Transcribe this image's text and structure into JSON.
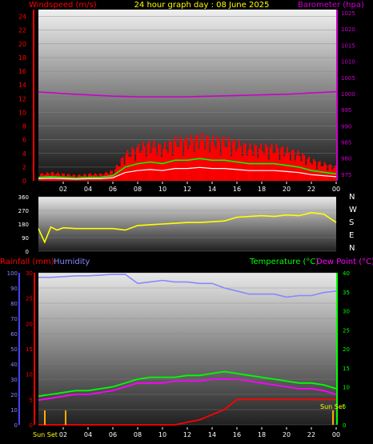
{
  "header": {
    "wind_label": "Windspeed (m/s)",
    "title": "24 hour graph day : 08 June 2025",
    "baro_label": "Barometer (hpa)"
  },
  "labels": {
    "rainfall": "Rainfall (mm)",
    "humidity": "Humidity",
    "temperature": "Temperature (°C)",
    "dewpoint": "Dew Point (°C)",
    "sun_set_left": "Sun Set",
    "sun_set_right": "Sun Set"
  },
  "colors": {
    "wind": "#ff0000",
    "barometer": "#cc00cc",
    "direction": "#ffff00",
    "rain": "#ff0000",
    "humidity": "#8888ff",
    "temperature": "#00ff00",
    "dewpoint": "#ff00ff",
    "gust": "#ffffff",
    "sunset_marker": "#ffaa00"
  },
  "chart_data": [
    {
      "type": "line",
      "panel": "wind_barometer",
      "x_ticks": [
        "02",
        "04",
        "06",
        "08",
        "10",
        "12",
        "14",
        "16",
        "18",
        "20",
        "22",
        "00"
      ],
      "y_left_ticks": [
        0,
        2,
        4,
        6,
        8,
        10,
        12,
        14,
        16,
        18,
        20,
        22,
        24
      ],
      "y_left_range": [
        0,
        25
      ],
      "y_right_ticks": [
        975,
        980,
        985,
        990,
        995,
        1000,
        1005,
        1010,
        1015,
        1020,
        1025
      ],
      "y_right_range": [
        973,
        1026
      ],
      "x_hours": [
        0,
        1,
        2,
        3,
        4,
        5,
        6,
        7,
        8,
        9,
        10,
        11,
        12,
        13,
        14,
        15,
        16,
        17,
        18,
        19,
        20,
        21,
        22,
        23,
        24
      ],
      "series": [
        {
          "name": "Windspeed (m/s)",
          "axis": "left",
          "values": [
            1,
            1.2,
            1,
            0.8,
            1,
            1,
            1.5,
            4,
            5,
            5.5,
            5,
            6,
            6,
            6.5,
            6,
            6,
            5.5,
            5,
            5,
            5,
            4.5,
            4,
            3,
            2.5,
            2
          ]
        },
        {
          "name": "Barometer (hpa)",
          "axis": "right",
          "values": [
            1000.5,
            1000.3,
            1000,
            999.8,
            999.6,
            999.4,
            999.2,
            999.1,
            999,
            999,
            999,
            999,
            999,
            999.1,
            999.2,
            999.3,
            999.4,
            999.5,
            999.6,
            999.7,
            999.8,
            1000,
            1000.2,
            1000.4,
            1000.6
          ]
        }
      ]
    },
    {
      "type": "line",
      "panel": "wind_direction",
      "y_ticks": [
        0,
        90,
        180,
        270,
        360
      ],
      "y_range": [
        0,
        360
      ],
      "compass": [
        "N",
        "W",
        "S",
        "E",
        "N"
      ],
      "x_hours": [
        0,
        0.5,
        1,
        1.5,
        2,
        3,
        4,
        5,
        6,
        7,
        8,
        9,
        10,
        11,
        12,
        13,
        14,
        15,
        16,
        17,
        18,
        19,
        20,
        21,
        22,
        23,
        24
      ],
      "series": [
        {
          "name": "Wind direction",
          "values": [
            150,
            60,
            160,
            140,
            155,
            150,
            150,
            150,
            150,
            140,
            170,
            175,
            180,
            185,
            190,
            190,
            195,
            200,
            225,
            230,
            235,
            230,
            240,
            235,
            255,
            245,
            190
          ]
        }
      ]
    },
    {
      "type": "line",
      "panel": "rain_humidity_temperature",
      "x_ticks": [
        "02",
        "04",
        "06",
        "08",
        "10",
        "12",
        "14",
        "16",
        "18",
        "20",
        "22",
        "00"
      ],
      "y_left_ticks": [
        0,
        10,
        20,
        30,
        40,
        50,
        60,
        70,
        80,
        90,
        100
      ],
      "y_left_range": [
        0,
        100
      ],
      "y_rain_ticks": [
        0,
        5,
        10,
        15,
        20,
        25,
        30
      ],
      "y_rain_range": [
        0,
        30
      ],
      "y_right_ticks": [
        0,
        5,
        10,
        15,
        20,
        25,
        30,
        35,
        40
      ],
      "y_right_range": [
        0,
        40
      ],
      "x_hours": [
        0,
        1,
        2,
        3,
        4,
        5,
        6,
        7,
        8,
        9,
        10,
        11,
        12,
        13,
        14,
        15,
        16,
        17,
        18,
        19,
        20,
        21,
        22,
        23,
        24
      ],
      "series": [
        {
          "name": "Humidity",
          "axis": "left",
          "values": [
            97,
            97,
            97.5,
            98,
            98,
            98.5,
            99,
            99,
            93,
            94,
            95,
            94,
            94,
            93,
            93,
            90,
            88,
            86,
            86,
            86,
            84,
            85,
            85,
            87,
            88
          ]
        },
        {
          "name": "Temperature (°C)",
          "axis": "right",
          "values": [
            7.5,
            8,
            8.5,
            9,
            9,
            9.5,
            10,
            11,
            12,
            12.5,
            12.5,
            12.5,
            13,
            13,
            13.5,
            14,
            13.5,
            13,
            12.5,
            12,
            11.5,
            11,
            11,
            10.5,
            9.5
          ]
        },
        {
          "name": "Dew Point (°C)",
          "axis": "right",
          "values": [
            6.5,
            7,
            7.5,
            8,
            8,
            8.5,
            9,
            10,
            11,
            11,
            11,
            11.5,
            11.5,
            11.5,
            12,
            12,
            12,
            11.5,
            11,
            10.5,
            10,
            9.5,
            9.5,
            9,
            8
          ]
        },
        {
          "name": "Rainfall (mm)",
          "axis": "rain",
          "values": [
            0,
            0,
            0,
            0,
            0,
            0,
            0,
            0,
            0,
            0,
            0,
            0,
            0.5,
            1,
            2,
            3,
            5,
            5,
            5,
            5,
            5,
            5,
            5,
            5,
            5
          ]
        }
      ]
    }
  ]
}
